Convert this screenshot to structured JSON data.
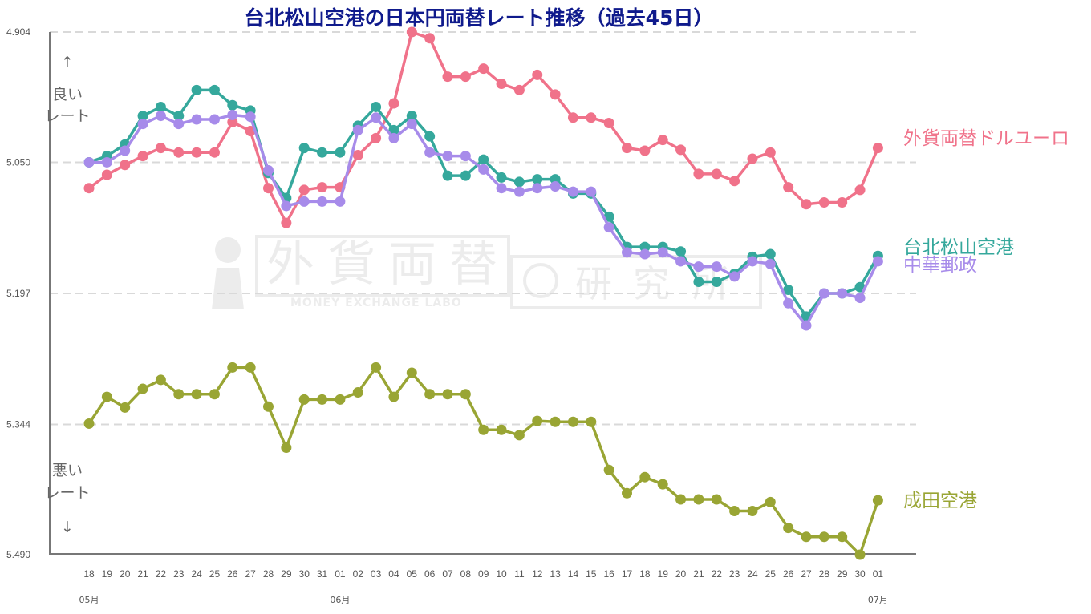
{
  "colors": {
    "title": "#0f1a8c",
    "grid": "#d9d9d9",
    "axis": "#777777",
    "watermark": "#ececec"
  },
  "watermark": {
    "kanji": [
      "外",
      "貨",
      "両",
      "替",
      "研",
      "究",
      "所"
    ],
    "text": "MONEY EXCHANGE LABO"
  },
  "notes": {
    "good_top": "良い",
    "good_bottom": "レート",
    "bad_top": "悪い",
    "bad_bottom": "レート",
    "up_arrow": "↑",
    "down_arrow": "↓"
  },
  "chart_data": {
    "type": "line",
    "title": "台北松山空港の日本円両替レート推移（過去45日）",
    "xlabel": "",
    "ylabel": "",
    "y_inverted": true,
    "ylim": [
      4.904,
      5.49
    ],
    "y_ticks": [
      "4.904",
      "5.050",
      "5.197",
      "5.344",
      "5.490"
    ],
    "x": [
      "18",
      "19",
      "20",
      "21",
      "22",
      "23",
      "24",
      "25",
      "26",
      "27",
      "28",
      "29",
      "30",
      "31",
      "01",
      "02",
      "03",
      "04",
      "05",
      "06",
      "07",
      "08",
      "09",
      "10",
      "11",
      "12",
      "13",
      "14",
      "15",
      "16",
      "17",
      "18",
      "19",
      "20",
      "21",
      "22",
      "23",
      "24",
      "25",
      "26",
      "27",
      "28",
      "29",
      "30",
      "01"
    ],
    "months": [
      {
        "label": "05月",
        "index": 0
      },
      {
        "label": "06月",
        "index": 14
      },
      {
        "label": "07月",
        "index": 44
      }
    ],
    "grid": "horizontal-dashed",
    "legend": "labels at right end of lines",
    "series": [
      {
        "name": "外貨両替ドルユーロ",
        "color": "#f0728a",
        "values": [
          5.079,
          5.064,
          5.053,
          5.043,
          5.034,
          5.039,
          5.039,
          5.039,
          5.005,
          5.015,
          5.079,
          5.118,
          5.081,
          5.078,
          5.078,
          5.042,
          5.023,
          4.984,
          4.904,
          4.911,
          4.954,
          4.954,
          4.945,
          4.962,
          4.969,
          4.952,
          4.974,
          5.0,
          5.0,
          5.006,
          5.034,
          5.037,
          5.025,
          5.036,
          5.063,
          5.063,
          5.071,
          5.046,
          5.039,
          5.078,
          5.097,
          5.095,
          5.095,
          5.081,
          5.034
        ]
      },
      {
        "name": "台北松山空港",
        "color": "#35a89c",
        "values": [
          5.05,
          5.043,
          5.03,
          4.998,
          4.988,
          4.998,
          4.969,
          4.969,
          4.986,
          4.992,
          5.062,
          5.09,
          5.034,
          5.039,
          5.039,
          5.009,
          4.988,
          5.014,
          4.998,
          5.021,
          5.065,
          5.065,
          5.047,
          5.067,
          5.072,
          5.069,
          5.069,
          5.085,
          5.085,
          5.111,
          5.145,
          5.145,
          5.145,
          5.15,
          5.184,
          5.184,
          5.175,
          5.156,
          5.153,
          5.193,
          5.223,
          5.197,
          5.197,
          5.19,
          5.155
        ]
      },
      {
        "name": "中華郵政",
        "color": "#a78bea",
        "values": [
          5.05,
          5.05,
          5.037,
          5.007,
          4.998,
          5.007,
          5.002,
          5.002,
          4.997,
          4.999,
          5.059,
          5.099,
          5.094,
          5.094,
          5.094,
          5.014,
          5.0,
          5.023,
          5.007,
          5.039,
          5.043,
          5.043,
          5.058,
          5.079,
          5.083,
          5.079,
          5.077,
          5.083,
          5.083,
          5.123,
          5.151,
          5.153,
          5.151,
          5.161,
          5.167,
          5.167,
          5.178,
          5.161,
          5.164,
          5.208,
          5.233,
          5.197,
          5.197,
          5.202,
          5.161
        ]
      },
      {
        "name": "成田空港",
        "color": "#99a534",
        "values": [
          5.343,
          5.313,
          5.325,
          5.304,
          5.294,
          5.31,
          5.31,
          5.31,
          5.28,
          5.28,
          5.324,
          5.37,
          5.316,
          5.316,
          5.316,
          5.308,
          5.28,
          5.313,
          5.286,
          5.31,
          5.31,
          5.31,
          5.35,
          5.35,
          5.356,
          5.34,
          5.341,
          5.341,
          5.341,
          5.395,
          5.421,
          5.403,
          5.411,
          5.428,
          5.428,
          5.428,
          5.441,
          5.441,
          5.431,
          5.46,
          5.47,
          5.47,
          5.47,
          5.49,
          5.429
        ]
      }
    ]
  }
}
